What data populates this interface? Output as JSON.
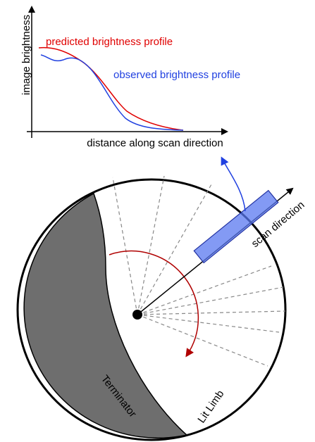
{
  "plot": {
    "y_axis_label": "image brightness",
    "x_axis_label": "distance along scan direction",
    "predicted_label": "predicted brightness profile",
    "observed_label": "observed brightness profile"
  },
  "diagram": {
    "scan_direction_label": "scan direction",
    "terminator_label": "Terminator",
    "lit_limb_label": "Lit Limb"
  }
}
